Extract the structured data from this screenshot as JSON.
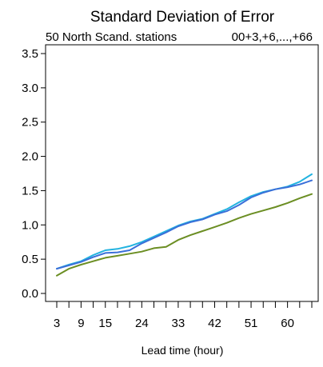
{
  "chart_data": {
    "type": "line",
    "title": "Standard Deviation of Error",
    "subtitle_left": "50 North Scand. stations",
    "subtitle_right": "00+3,+6,...,+66",
    "xlabel": "Lead time (hour)",
    "ylabel": "",
    "xlim": [
      3,
      66
    ],
    "ylim": [
      0.0,
      3.6
    ],
    "x_tick_values": [
      3,
      6,
      9,
      12,
      15,
      18,
      21,
      24,
      27,
      30,
      33,
      36,
      39,
      42,
      45,
      48,
      51,
      54,
      57,
      60,
      63,
      66
    ],
    "x_tick_labels": [
      "3",
      "9",
      "15",
      "24",
      "33",
      "42",
      "51",
      "60"
    ],
    "x_tick_label_values": [
      3,
      9,
      15,
      24,
      33,
      42,
      51,
      60
    ],
    "y_ticks": [
      0.0,
      0.5,
      1.0,
      1.5,
      2.0,
      2.5,
      3.0,
      3.5
    ],
    "y_tick_labels": [
      "0.0",
      "0.5",
      "1.0",
      "1.5",
      "2.0",
      "2.5",
      "3.0",
      "3.5"
    ],
    "x": [
      3,
      6,
      9,
      12,
      15,
      18,
      21,
      24,
      27,
      30,
      33,
      36,
      39,
      42,
      45,
      48,
      51,
      54,
      57,
      60,
      63,
      66
    ],
    "series": [
      {
        "color": "#22b3e0",
        "values": [
          0.36,
          0.42,
          0.47,
          0.56,
          0.63,
          0.65,
          0.69,
          0.75,
          0.83,
          0.91,
          0.99,
          1.05,
          1.09,
          1.16,
          1.23,
          1.33,
          1.42,
          1.48,
          1.52,
          1.56,
          1.63,
          1.74
        ]
      },
      {
        "color": "#3a6fd8",
        "values": [
          0.36,
          0.41,
          0.46,
          0.53,
          0.59,
          0.6,
          0.63,
          0.73,
          0.81,
          0.89,
          0.98,
          1.04,
          1.08,
          1.15,
          1.2,
          1.29,
          1.4,
          1.47,
          1.52,
          1.55,
          1.59,
          1.65
        ]
      },
      {
        "color": "#6b8e23",
        "values": [
          0.26,
          0.36,
          0.42,
          0.47,
          0.52,
          0.55,
          0.58,
          0.61,
          0.66,
          0.68,
          0.78,
          0.85,
          0.91,
          0.97,
          1.03,
          1.1,
          1.16,
          1.21,
          1.26,
          1.32,
          1.39,
          1.45
        ]
      }
    ]
  }
}
